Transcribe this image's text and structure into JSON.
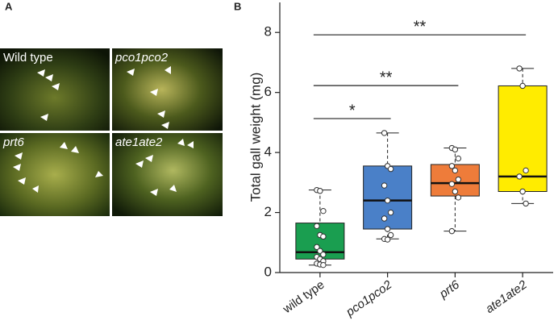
{
  "panel_labels": [
    "A",
    "B"
  ],
  "photos": {
    "labels": [
      "Wild type",
      "pco1pco2",
      "prt6",
      "ate1ate2"
    ],
    "italic": [
      false,
      true,
      true,
      true
    ]
  },
  "chart_data": {
    "type": "box",
    "ylabel": "Total gall weight (mg)",
    "categories": [
      "wild type",
      "pco1pco2",
      "prt6",
      "ate1ate2"
    ],
    "italic_labels": [
      false,
      true,
      true,
      true
    ],
    "colors": [
      "#1a9e50",
      "#4a80c8",
      "#ee7c3a",
      "#ffec00"
    ],
    "whisker_low": [
      0.25,
      1.12,
      1.38,
      2.3
    ],
    "q1": [
      0.45,
      1.45,
      2.55,
      2.7
    ],
    "median": [
      0.68,
      2.4,
      2.98,
      3.2
    ],
    "q3": [
      1.65,
      3.55,
      3.6,
      6.22
    ],
    "whisker_high": [
      2.75,
      4.65,
      4.15,
      6.8
    ],
    "points": [
      [
        2.75,
        2.72,
        2.05,
        1.55,
        1.25,
        1.2,
        0.85,
        0.72,
        0.6,
        0.52,
        0.45,
        0.38,
        0.3,
        0.27,
        0.25
      ],
      [
        4.65,
        3.55,
        3.45,
        2.9,
        2.4,
        2.0,
        1.8,
        1.45,
        1.25,
        1.12,
        1.1
      ],
      [
        4.15,
        4.1,
        3.8,
        3.55,
        3.4,
        3.1,
        2.95,
        2.7,
        2.5,
        1.38
      ],
      [
        6.8,
        6.22,
        3.4,
        3.2,
        2.7,
        2.3
      ]
    ],
    "significance": [
      {
        "from": 0,
        "to": 1,
        "label": "*",
        "y": 5.13
      },
      {
        "from": 0,
        "to": 2,
        "label": "**",
        "y": 6.23
      },
      {
        "from": 0,
        "to": 3,
        "label": "**",
        "y": 7.92
      }
    ],
    "ylim": [
      0,
      9
    ],
    "yticks": [
      0,
      2,
      4,
      6,
      8
    ]
  }
}
